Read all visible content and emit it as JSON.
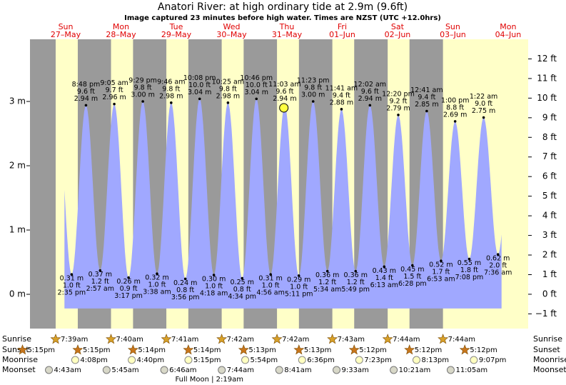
{
  "chart_data": {
    "type": "tide",
    "title": "Anatori River: at high  ordinary tide at 2.9m (9.6ft)",
    "subtitle": "Image captured 23 minutes before high water. Times are NZST (UTC +12.0hrs)",
    "days": [
      {
        "weekday": "Sun",
        "date": "27–May"
      },
      {
        "weekday": "Mon",
        "date": "28–May"
      },
      {
        "weekday": "Tue",
        "date": "29–May"
      },
      {
        "weekday": "Wed",
        "date": "30–May"
      },
      {
        "weekday": "Thu",
        "date": "31–May"
      },
      {
        "weekday": "Fri",
        "date": "01–Jun"
      },
      {
        "weekday": "Sat",
        "date": "02–Jun"
      },
      {
        "weekday": "Sun",
        "date": "03–Jun"
      },
      {
        "weekday": "Mon",
        "date": "04–Jun"
      }
    ],
    "xlim": [
      -3.5,
      212.7
    ],
    "ylim": [
      -0.533,
      3.967
    ],
    "yticks": [
      {
        "value": 0,
        "label": "0 m"
      },
      {
        "value": 1,
        "label": "1 m"
      },
      {
        "value": 2,
        "label": "2 m"
      },
      {
        "value": 3,
        "label": "3 m"
      }
    ],
    "y2lim": [
      -1.75,
      13.0
    ],
    "y2ticks": [
      {
        "value": -1,
        "label": "−1 ft"
      },
      {
        "value": 0,
        "label": "0 ft"
      },
      {
        "value": 1,
        "label": "1 ft"
      },
      {
        "value": 2,
        "label": "2 ft"
      },
      {
        "value": 3,
        "label": "3 ft"
      },
      {
        "value": 4,
        "label": "4 ft"
      },
      {
        "value": 5,
        "label": "5 ft"
      },
      {
        "value": 6,
        "label": "6 ft"
      },
      {
        "value": 7,
        "label": "7 ft"
      },
      {
        "value": 8,
        "label": "8 ft"
      },
      {
        "value": 9,
        "label": "9 ft"
      },
      {
        "value": 10,
        "label": "10 ft"
      },
      {
        "value": 11,
        "label": "11 ft"
      },
      {
        "value": 12,
        "label": "12 ft"
      }
    ],
    "color": "#a0a8ff",
    "tide": {
      "x": [
        14.58,
        20.8,
        26.95,
        33.08,
        39.28,
        45.48,
        51.63,
        57.77,
        63.93,
        70.13,
        76.3,
        82.42,
        88.57,
        94.77,
        100.93,
        107.05,
        113.18,
        119.38,
        125.57,
        131.68,
        137.82,
        144.03,
        150.22,
        156.33,
        162.47,
        168.68,
        174.88,
        181.0,
        187.13,
        193.37,
        199.6
      ],
      "times": [
        "2:35 pm",
        "8:48 pm",
        "2:57 am",
        "9:05 am",
        "3:17 pm",
        "9:29 pm",
        "3:38 am",
        "9:46 am",
        "3:56 pm",
        "10:08 pm",
        "4:18 am",
        "10:25 am",
        "4:34 pm",
        "10:46 pm",
        "4:56 am",
        "11:03 am",
        "5:11 pm",
        "11:23 pm",
        "5:34 am",
        "11:41 am",
        "5:49 pm",
        "12:02 am",
        "6:13 am",
        "12:20 pm",
        "6:28 pm",
        "12:41 am",
        "6:53 am",
        "1:00 pm",
        "7:08 pm",
        "1:22 am",
        "7:36 am"
      ],
      "values": [
        0.31,
        2.94,
        0.37,
        2.96,
        0.26,
        3.0,
        0.32,
        2.98,
        0.24,
        3.04,
        0.3,
        2.98,
        0.25,
        3.04,
        0.31,
        2.94,
        0.29,
        3.0,
        0.36,
        2.88,
        0.36,
        2.94,
        0.43,
        2.79,
        0.45,
        2.85,
        0.52,
        2.69,
        0.55,
        2.75,
        0.62
      ],
      "value_labels": [
        "0.31 m",
        "2.94 m",
        "0.37 m",
        "2.96 m",
        "0.26 m",
        "3.00 m",
        "0.32 m",
        "2.98 m",
        "0.24 m",
        "3.04 m",
        "0.30 m",
        "2.98 m",
        "0.25 m",
        "3.04 m",
        "0.31 m",
        "2.94 m",
        "0.29 m",
        "3.00 m",
        "0.36 m",
        "2.88 m",
        "0.36 m",
        "2.94 m",
        "0.43 m",
        "2.79 m",
        "0.45 m",
        "2.85 m",
        "0.52 m",
        "2.69 m",
        "0.55 m",
        "2.75 m",
        "0.62 m"
      ],
      "feet": [
        1.0,
        9.6,
        1.2,
        9.7,
        0.9,
        9.8,
        1.0,
        9.8,
        0.8,
        10.0,
        1.0,
        9.8,
        0.8,
        10.0,
        1.0,
        9.6,
        1.0,
        9.8,
        1.2,
        9.4,
        1.2,
        9.6,
        1.4,
        9.2,
        1.5,
        9.4,
        1.7,
        8.8,
        1.8,
        9.0,
        2.0
      ],
      "feet_labels": [
        "1.0 ft",
        "9.6 ft",
        "1.2 ft",
        "9.7 ft",
        "0.9 ft",
        "9.8 ft",
        "1.0 ft",
        "9.8 ft",
        "0.8 ft",
        "10.0 ft",
        "1.0 ft",
        "9.8 ft",
        "0.8 ft",
        "10.0 ft",
        "1.0 ft",
        "9.6 ft",
        "1.0 ft",
        "9.8 ft",
        "1.2 ft",
        "9.4 ft",
        "1.2 ft",
        "9.6 ft",
        "1.4 ft",
        "9.2 ft",
        "1.5 ft",
        "9.4 ft",
        "1.7 ft",
        "8.8 ft",
        "1.8 ft",
        "9.0 ft",
        "2.0 ft"
      ]
    },
    "now": {
      "x": 106.67,
      "height_m": 2.9
    },
    "rows": {
      "sunrise": {
        "label": "Sunrise",
        "x": [
          7.65,
          31.67,
          55.68,
          79.7,
          103.7,
          127.72,
          151.73,
          175.73
        ],
        "times": [
          "7:39am",
          "7:40am",
          "7:41am",
          "7:42am",
          "7:42am",
          "7:43am",
          "7:44am",
          "7:44am"
        ]
      },
      "sunset": {
        "label": "Sunset",
        "x": [
          -6.75,
          17.25,
          41.23,
          65.23,
          89.22,
          113.22,
          137.2,
          161.2,
          185.2
        ],
        "times": [
          "5:15pm",
          "5:15pm",
          "5:14pm",
          "5:14pm",
          "5:13pm",
          "5:13pm",
          "5:12pm",
          "5:12pm",
          "5:12pm"
        ]
      },
      "moonrise": {
        "label": "Moonrise",
        "x": [
          16.13,
          40.67,
          65.25,
          89.9,
          114.6,
          139.38,
          164.22,
          189.12
        ],
        "times": [
          "4:08pm",
          "4:40pm",
          "5:15pm",
          "5:54pm",
          "6:36pm",
          "7:23pm",
          "8:13pm",
          "9:07pm"
        ]
      },
      "moonset": {
        "label": "Moonset",
        "x": [
          4.72,
          29.75,
          54.77,
          79.73,
          104.68,
          129.55,
          154.35,
          179.08
        ],
        "times": [
          "4:43am",
          "5:45am",
          "6:46am",
          "7:44am",
          "8:41am",
          "9:33am",
          "10:21am",
          "11:05am"
        ]
      }
    },
    "moon_phase": {
      "label": "Full Moon | 2:19am",
      "x": 74.32
    }
  }
}
